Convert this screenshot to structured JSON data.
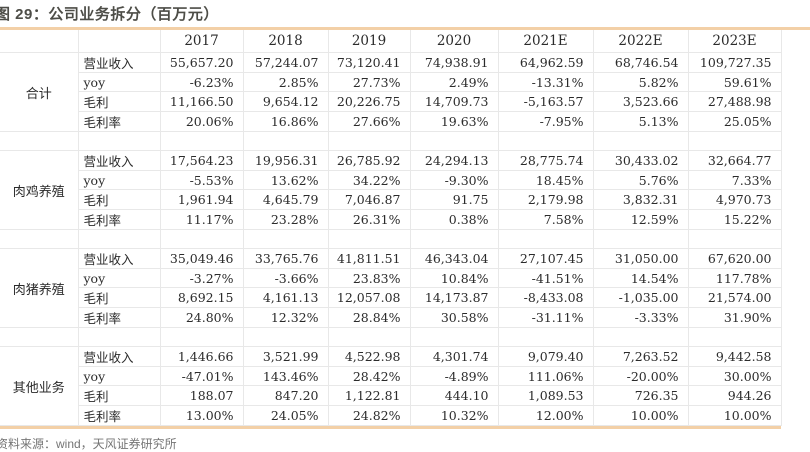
{
  "title": "图 29：公司业务拆分（百万元）",
  "source": "资料来源：wind，天风证券研究所",
  "colors": {
    "accent_line": "#f3d0a7",
    "grid_line": "#e8e8e8",
    "title_text": "#4d4d47",
    "source_text": "#757575"
  },
  "table": {
    "year_columns": [
      "2017",
      "2018",
      "2019",
      "2020",
      "2021E",
      "2022E",
      "2023E"
    ],
    "metric_labels": [
      "营业收入",
      "yoy",
      "毛利",
      "毛利率"
    ],
    "sections": [
      {
        "name": "合计",
        "rows": [
          [
            "55,657.20",
            "57,244.07",
            "73,120.41",
            "74,938.91",
            "64,962.59",
            "68,746.54",
            "109,727.35"
          ],
          [
            "-6.23%",
            "2.85%",
            "27.73%",
            "2.49%",
            "-13.31%",
            "5.82%",
            "59.61%"
          ],
          [
            "11,166.50",
            "9,654.12",
            "20,226.75",
            "14,709.73",
            "-5,163.57",
            "3,523.66",
            "27,488.98"
          ],
          [
            "20.06%",
            "16.86%",
            "27.66%",
            "19.63%",
            "-7.95%",
            "5.13%",
            "25.05%"
          ]
        ]
      },
      {
        "name": "肉鸡养殖",
        "rows": [
          [
            "17,564.23",
            "19,956.31",
            "26,785.92",
            "24,294.13",
            "28,775.74",
            "30,433.02",
            "32,664.77"
          ],
          [
            "-5.53%",
            "13.62%",
            "34.22%",
            "-9.30%",
            "18.45%",
            "5.76%",
            "7.33%"
          ],
          [
            "1,961.94",
            "4,645.79",
            "7,046.87",
            "91.75",
            "2,179.98",
            "3,832.31",
            "4,970.73"
          ],
          [
            "11.17%",
            "23.28%",
            "26.31%",
            "0.38%",
            "7.58%",
            "12.59%",
            "15.22%"
          ]
        ]
      },
      {
        "name": "肉猪养殖",
        "rows": [
          [
            "35,049.46",
            "33,765.76",
            "41,811.51",
            "46,343.04",
            "27,107.45",
            "31,050.00",
            "67,620.00"
          ],
          [
            "-3.27%",
            "-3.66%",
            "23.83%",
            "10.84%",
            "-41.51%",
            "14.54%",
            "117.78%"
          ],
          [
            "8,692.15",
            "4,161.13",
            "12,057.08",
            "14,173.87",
            "-8,433.08",
            "-1,035.00",
            "21,574.00"
          ],
          [
            "24.80%",
            "12.32%",
            "28.84%",
            "30.58%",
            "-31.11%",
            "-3.33%",
            "31.90%"
          ]
        ]
      },
      {
        "name": "其他业务",
        "rows": [
          [
            "1,446.66",
            "3,521.99",
            "4,522.98",
            "4,301.74",
            "9,079.40",
            "7,263.52",
            "9,442.58"
          ],
          [
            "-47.01%",
            "143.46%",
            "28.42%",
            "-4.89%",
            "111.06%",
            "-20.00%",
            "30.00%"
          ],
          [
            "188.07",
            "847.20",
            "1,122.81",
            "444.10",
            "1,089.53",
            "726.35",
            "944.26"
          ],
          [
            "13.00%",
            "24.05%",
            "24.82%",
            "10.32%",
            "12.00%",
            "10.00%",
            "10.00%"
          ]
        ]
      }
    ]
  }
}
